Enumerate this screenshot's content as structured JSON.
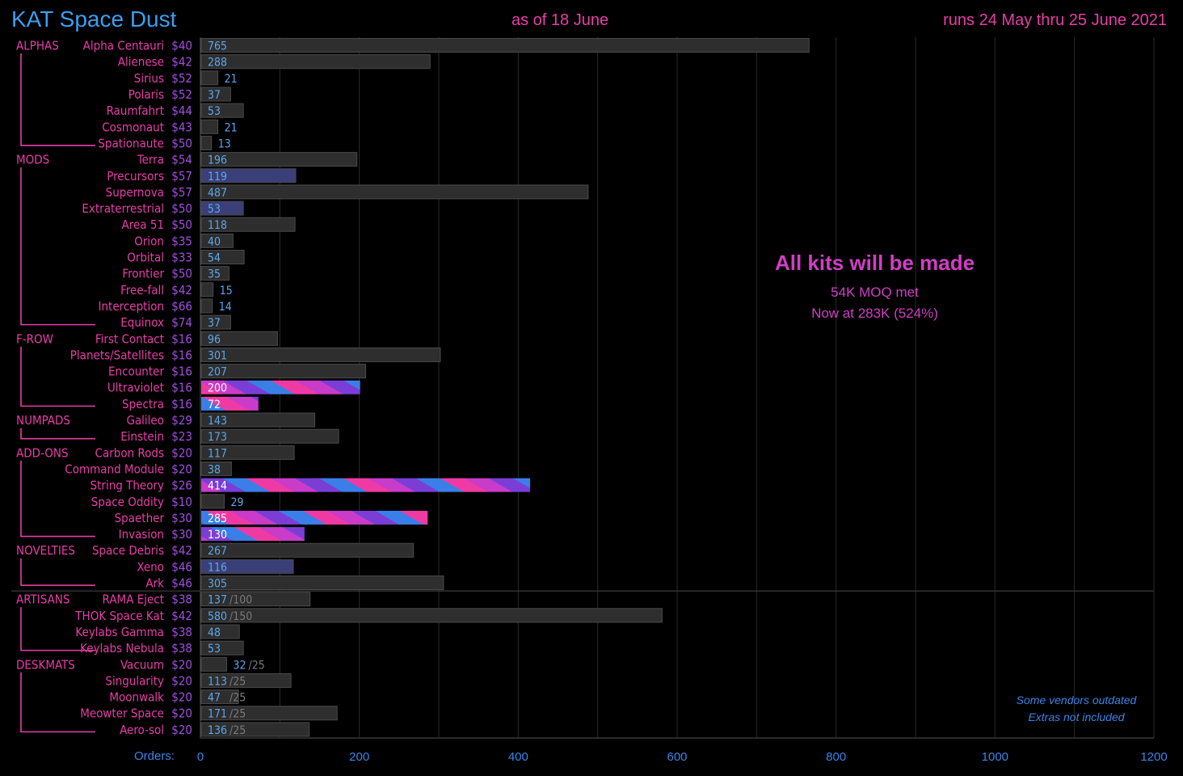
{
  "header": {
    "title": "KAT Space Dust",
    "as_of": "as of 18 June",
    "runs": "runs 24 May thru 25 June 2021"
  },
  "notes": {
    "headline": "All kits will be made",
    "moq": "54K MOQ met",
    "now_at": "Now at 283K (524%)",
    "vendors": "Some vendors outdated",
    "extras": "Extras not included"
  },
  "x_axis_label": "Orders:",
  "colors": {
    "background": "#000000",
    "bar_gray": "#2e2e2e",
    "bar_navy": "#3a3f78",
    "label_pink": "#e83da8",
    "value_blue": "#5aa8ee",
    "price_purple": "#a24de0",
    "gradient": [
      "#ef3aa4",
      "#c93bc9",
      "#7a3ed6",
      "#3a7fe8"
    ]
  },
  "chart_data": {
    "type": "bar",
    "orientation": "horizontal",
    "title": "KAT Space Dust",
    "xlabel": "Orders:",
    "xlim": [
      0,
      1200
    ],
    "xticks": [
      0,
      200,
      400,
      600,
      800,
      1000,
      1200
    ],
    "groups": [
      {
        "name": "ALPHAS",
        "items": [
          {
            "label": "Alpha Centauri",
            "price": "$40",
            "value": 765,
            "style": "gray"
          },
          {
            "label": "Alienese",
            "price": "$42",
            "value": 288,
            "style": "gray"
          },
          {
            "label": "Sirius",
            "price": "$52",
            "value": 21,
            "style": "gray"
          },
          {
            "label": "Polaris",
            "price": "$52",
            "value": 37,
            "style": "gray"
          },
          {
            "label": "Raumfahrt",
            "price": "$44",
            "value": 53,
            "style": "gray"
          },
          {
            "label": "Cosmonaut",
            "price": "$43",
            "value": 21,
            "style": "gray"
          },
          {
            "label": "Spationaute",
            "price": "$50",
            "value": 13,
            "style": "gray"
          }
        ]
      },
      {
        "name": "MODS",
        "items": [
          {
            "label": "Terra",
            "price": "$54",
            "value": 196,
            "style": "gray"
          },
          {
            "label": "Precursors",
            "price": "$57",
            "value": 119,
            "style": "navy"
          },
          {
            "label": "Supernova",
            "price": "$57",
            "value": 487,
            "style": "gray"
          },
          {
            "label": "Extraterrestrial",
            "price": "$50",
            "value": 53,
            "style": "navy"
          },
          {
            "label": "Area 51",
            "price": "$50",
            "value": 118,
            "style": "gray"
          },
          {
            "label": "Orion",
            "price": "$35",
            "value": 40,
            "style": "gray"
          },
          {
            "label": "Orbital",
            "price": "$33",
            "value": 54,
            "style": "gray"
          },
          {
            "label": "Frontier",
            "price": "$50",
            "value": 35,
            "style": "gray"
          },
          {
            "label": "Free-fall",
            "price": "$42",
            "value": 15,
            "style": "gray"
          },
          {
            "label": "Interception",
            "price": "$66",
            "value": 14,
            "style": "gray"
          },
          {
            "label": "Equinox",
            "price": "$74",
            "value": 37,
            "style": "gray"
          }
        ]
      },
      {
        "name": "F-ROW",
        "items": [
          {
            "label": "First Contact",
            "price": "$16",
            "value": 96,
            "style": "gray"
          },
          {
            "label": "Planets/Satellites",
            "price": "$16",
            "value": 301,
            "style": "gray"
          },
          {
            "label": "Encounter",
            "price": "$16",
            "value": 207,
            "style": "gray"
          },
          {
            "label": "Ultraviolet",
            "price": "$16",
            "value": 200,
            "style": "gradient"
          },
          {
            "label": "Spectra",
            "price": "$16",
            "value": 72,
            "style": "gradient"
          }
        ]
      },
      {
        "name": "NUMPADS",
        "items": [
          {
            "label": "Galileo",
            "price": "$29",
            "value": 143,
            "style": "gray"
          },
          {
            "label": "Einstein",
            "price": "$23",
            "value": 173,
            "style": "gray"
          }
        ]
      },
      {
        "name": "ADD-ONS",
        "items": [
          {
            "label": "Carbon Rods",
            "price": "$20",
            "value": 117,
            "style": "gray"
          },
          {
            "label": "Command Module",
            "price": "$20",
            "value": 38,
            "style": "gray"
          },
          {
            "label": "String Theory",
            "price": "$26",
            "value": 414,
            "style": "gradient"
          },
          {
            "label": "Space Oddity",
            "price": "$10",
            "value": 29,
            "style": "gray"
          },
          {
            "label": "Spaether",
            "price": "$30",
            "value": 285,
            "style": "gradient"
          },
          {
            "label": "Invasion",
            "price": "$30",
            "value": 130,
            "style": "gradient"
          }
        ]
      },
      {
        "name": "NOVELTIES",
        "items": [
          {
            "label": "Space Debris",
            "price": "$42",
            "value": 267,
            "style": "gray"
          },
          {
            "label": "Xeno",
            "price": "$46",
            "value": 116,
            "style": "navy"
          },
          {
            "label": "Ark",
            "price": "$46",
            "value": 305,
            "style": "gray"
          }
        ]
      },
      {
        "name": "ARTISANS",
        "items": [
          {
            "label": "RAMA Eject",
            "price": "$38",
            "value": 137,
            "style": "gray",
            "moq": "/100"
          },
          {
            "label": "THOK Space Kat",
            "price": "$42",
            "value": 580,
            "style": "gray",
            "moq": "/150"
          },
          {
            "label": "Keylabs Gamma",
            "price": "$38",
            "value": 48,
            "style": "gray"
          },
          {
            "label": "Keylabs Nebula",
            "price": "$38",
            "value": 53,
            "style": "gray"
          }
        ]
      },
      {
        "name": "DESKMATS",
        "items": [
          {
            "label": "Vacuum",
            "price": "$20",
            "value": 32,
            "style": "gray",
            "moq": "/25"
          },
          {
            "label": "Singularity",
            "price": "$20",
            "value": 113,
            "style": "gray",
            "moq": "/25"
          },
          {
            "label": "Moonwalk",
            "price": "$20",
            "value": 47,
            "style": "gray",
            "moq": "/25"
          },
          {
            "label": "Meowter Space",
            "price": "$20",
            "value": 171,
            "style": "gray",
            "moq": "/25"
          },
          {
            "label": "Aero-sol",
            "price": "$20",
            "value": 136,
            "style": "gray",
            "moq": "/25"
          }
        ]
      }
    ]
  }
}
